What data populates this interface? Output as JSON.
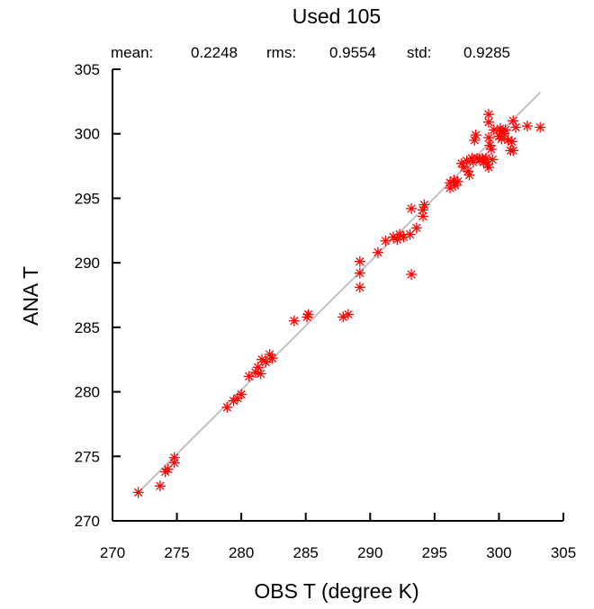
{
  "chart_data": {
    "type": "scatter",
    "title": "Used  105",
    "stats": {
      "mean_label": "mean:",
      "mean_value": "0.2248",
      "rms_label": "rms:",
      "rms_value": "0.9554",
      "std_label": "std:",
      "std_value": "0.9285"
    },
    "xlabel": "OBS T  (degree K)",
    "ylabel": "ANA T",
    "xlim": [
      270,
      305
    ],
    "ylim": [
      270,
      305
    ],
    "xticks": [
      270,
      275,
      280,
      285,
      290,
      295,
      300,
      305
    ],
    "yticks": [
      270,
      275,
      280,
      285,
      290,
      295,
      300,
      305
    ],
    "grid": false,
    "marker": "asterisk",
    "marker_color": "#ff0000",
    "fit_line_color": "#c0c0c0",
    "fit_line": [
      [
        272.0,
        272.2
      ],
      [
        303.2,
        303.2
      ]
    ],
    "points": [
      [
        272.0,
        272.2
      ],
      [
        273.7,
        272.7
      ],
      [
        274.1,
        273.8
      ],
      [
        274.3,
        274.0
      ],
      [
        274.8,
        274.5
      ],
      [
        274.8,
        274.9
      ],
      [
        278.9,
        278.8
      ],
      [
        279.4,
        279.3
      ],
      [
        279.7,
        279.5
      ],
      [
        280.0,
        279.8
      ],
      [
        280.6,
        281.2
      ],
      [
        281.1,
        281.5
      ],
      [
        281.3,
        281.9
      ],
      [
        281.5,
        281.4
      ],
      [
        281.6,
        282.5
      ],
      [
        281.9,
        282.3
      ],
      [
        282.2,
        282.9
      ],
      [
        282.4,
        282.6
      ],
      [
        284.1,
        285.5
      ],
      [
        285.1,
        285.8
      ],
      [
        285.2,
        286.0
      ],
      [
        287.9,
        285.8
      ],
      [
        288.3,
        286.0
      ],
      [
        289.2,
        288.1
      ],
      [
        289.2,
        289.2
      ],
      [
        289.2,
        290.1
      ],
      [
        290.6,
        290.8
      ],
      [
        291.2,
        291.7
      ],
      [
        291.8,
        292.0
      ],
      [
        292.1,
        291.8
      ],
      [
        292.3,
        292.2
      ],
      [
        292.6,
        292.0
      ],
      [
        293.1,
        292.2
      ],
      [
        293.2,
        294.2
      ],
      [
        293.2,
        289.1
      ],
      [
        293.6,
        292.7
      ],
      [
        294.1,
        293.6
      ],
      [
        294.1,
        294.1
      ],
      [
        294.2,
        294.5
      ],
      [
        296.2,
        295.8
      ],
      [
        296.2,
        296.2
      ],
      [
        296.5,
        296.4
      ],
      [
        296.6,
        296.0
      ],
      [
        296.8,
        296.3
      ],
      [
        297.1,
        297.7
      ],
      [
        297.3,
        297.4
      ],
      [
        297.5,
        297.9
      ],
      [
        297.6,
        297.1
      ],
      [
        297.7,
        296.8
      ],
      [
        297.9,
        298.1
      ],
      [
        298.0,
        297.8
      ],
      [
        298.1,
        299.5
      ],
      [
        298.2,
        299.9
      ],
      [
        298.3,
        298.1
      ],
      [
        298.5,
        298.0
      ],
      [
        298.7,
        298.1
      ],
      [
        298.8,
        297.8
      ],
      [
        299.0,
        298.1
      ],
      [
        299.1,
        297.6
      ],
      [
        299.2,
        297.4
      ],
      [
        299.2,
        299.7
      ],
      [
        299.2,
        300.9
      ],
      [
        299.2,
        301.5
      ],
      [
        299.3,
        299.1
      ],
      [
        299.4,
        298.8
      ],
      [
        299.5,
        298.0
      ],
      [
        299.6,
        300.3
      ],
      [
        300.0,
        299.8
      ],
      [
        300.1,
        300.4
      ],
      [
        300.2,
        300.2
      ],
      [
        300.2,
        299.6
      ],
      [
        300.4,
        300.0
      ],
      [
        300.5,
        300.3
      ],
      [
        300.7,
        299.5
      ],
      [
        300.9,
        298.7
      ],
      [
        301.0,
        299.4
      ],
      [
        301.1,
        301.0
      ],
      [
        301.1,
        298.7
      ],
      [
        301.3,
        300.5
      ],
      [
        302.2,
        300.6
      ],
      [
        303.2,
        300.5
      ]
    ]
  }
}
